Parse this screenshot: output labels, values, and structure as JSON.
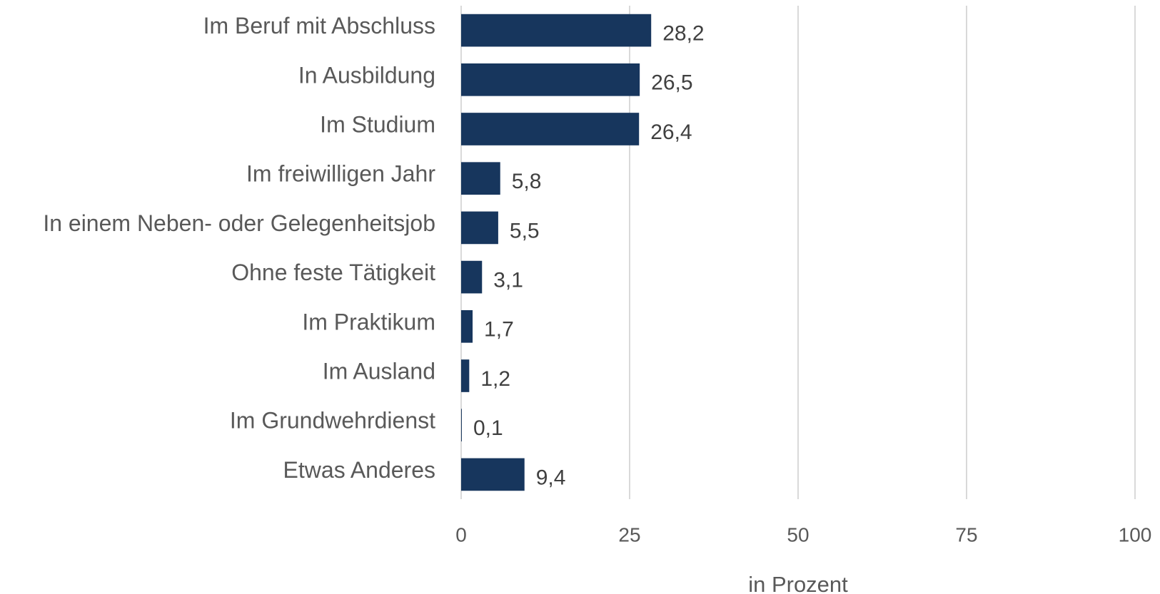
{
  "chart_data": {
    "type": "bar",
    "orientation": "horizontal",
    "categories": [
      "Im Beruf mit Abschluss",
      "In Ausbildung",
      "Im Studium",
      "Im freiwilligen Jahr",
      "In einem Neben- oder Gelegenheitsjob",
      "Ohne feste Tätigkeit",
      "Im Praktikum",
      "Im Ausland",
      "Im Grundwehrdienst",
      "Etwas Anderes"
    ],
    "values": [
      28.2,
      26.5,
      26.4,
      5.8,
      5.5,
      3.1,
      1.7,
      1.2,
      0.1,
      9.4
    ],
    "value_labels": [
      "28,2",
      "26,5",
      "26,4",
      "5,8",
      "5,5",
      "3,1",
      "1,7",
      "1,2",
      "0,1",
      "9,4"
    ],
    "color": "#17365d",
    "xlabel": "in Prozent",
    "xlim": [
      0,
      100
    ],
    "xticks": [
      0,
      25,
      50,
      75,
      100
    ],
    "grid": true
  }
}
